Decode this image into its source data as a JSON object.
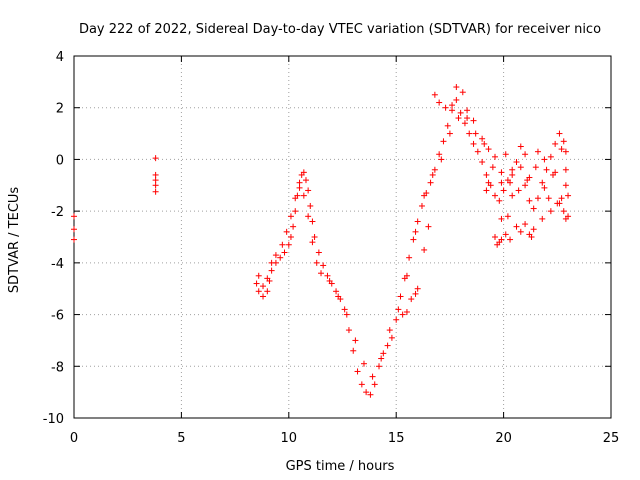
{
  "chart_data": {
    "type": "scatter",
    "title": "Day 222 of 2022, Sidereal Day-to-day VTEC variation (SDTVAR) for receiver nico",
    "xlabel": "GPS time / hours",
    "ylabel": "SDTVAR / TECUs",
    "xlim": [
      0,
      25
    ],
    "ylim": [
      -10,
      4
    ],
    "xticks": [
      0,
      5,
      10,
      15,
      20,
      25
    ],
    "yticks": [
      -10,
      -8,
      -6,
      -4,
      -2,
      0,
      2,
      4
    ],
    "grid": true,
    "marker": "+",
    "series": [
      {
        "name": "SDTVAR",
        "color": "#ff0000",
        "points": [
          [
            0.0,
            -2.2
          ],
          [
            0.0,
            -2.7
          ],
          [
            0.0,
            -3.1
          ],
          [
            3.8,
            0.05
          ],
          [
            3.8,
            -0.6
          ],
          [
            3.8,
            -0.8
          ],
          [
            3.8,
            -1.0
          ],
          [
            3.8,
            -1.25
          ],
          [
            8.5,
            -4.8
          ],
          [
            8.6,
            -5.1
          ],
          [
            8.8,
            -5.3
          ],
          [
            9.0,
            -5.1
          ],
          [
            9.1,
            -4.7
          ],
          [
            9.2,
            -4.3
          ],
          [
            9.4,
            -4.0
          ],
          [
            9.6,
            -3.8
          ],
          [
            9.8,
            -3.6
          ],
          [
            10.0,
            -3.3
          ],
          [
            10.1,
            -3.0
          ],
          [
            10.2,
            -2.6
          ],
          [
            10.3,
            -2.0
          ],
          [
            10.4,
            -1.4
          ],
          [
            10.5,
            -0.9
          ],
          [
            10.6,
            -0.6
          ],
          [
            10.7,
            -0.5
          ],
          [
            10.8,
            -0.8
          ],
          [
            10.9,
            -1.2
          ],
          [
            11.0,
            -1.8
          ],
          [
            11.1,
            -2.4
          ],
          [
            11.2,
            -3.0
          ],
          [
            11.4,
            -3.6
          ],
          [
            11.6,
            -4.1
          ],
          [
            11.8,
            -4.5
          ],
          [
            12.0,
            -4.8
          ],
          [
            12.2,
            -5.1
          ],
          [
            12.4,
            -5.4
          ],
          [
            12.6,
            -5.8
          ],
          [
            12.8,
            -6.6
          ],
          [
            13.0,
            -7.4
          ],
          [
            13.2,
            -8.2
          ],
          [
            13.4,
            -8.7
          ],
          [
            13.6,
            -9.0
          ],
          [
            13.8,
            -9.1
          ],
          [
            14.0,
            -8.7
          ],
          [
            14.2,
            -8.0
          ],
          [
            14.4,
            -7.5
          ],
          [
            14.6,
            -7.2
          ],
          [
            14.8,
            -6.9
          ],
          [
            15.0,
            -6.2
          ],
          [
            15.2,
            -5.3
          ],
          [
            15.4,
            -4.6
          ],
          [
            15.6,
            -3.8
          ],
          [
            15.8,
            -3.1
          ],
          [
            16.0,
            -2.4
          ],
          [
            16.2,
            -1.8
          ],
          [
            16.4,
            -1.3
          ],
          [
            16.6,
            -0.9
          ],
          [
            16.8,
            -0.4
          ],
          [
            17.0,
            0.2
          ],
          [
            17.2,
            0.7
          ],
          [
            17.4,
            1.3
          ],
          [
            17.6,
            2.1
          ],
          [
            17.8,
            2.8
          ],
          [
            18.0,
            1.8
          ],
          [
            18.2,
            1.4
          ],
          [
            18.4,
            1.0
          ],
          [
            18.6,
            0.6
          ],
          [
            18.8,
            0.3
          ],
          [
            19.0,
            -0.1
          ],
          [
            19.2,
            -0.6
          ],
          [
            19.4,
            -1.0
          ],
          [
            19.6,
            -1.4
          ],
          [
            19.8,
            -1.6
          ],
          [
            20.0,
            -1.2
          ],
          [
            20.2,
            -0.8
          ],
          [
            20.4,
            -0.4
          ],
          [
            20.6,
            -0.1
          ],
          [
            20.8,
            -0.3
          ],
          [
            21.0,
            -1.0
          ],
          [
            21.2,
            -1.6
          ],
          [
            21.4,
            -1.9
          ],
          [
            21.6,
            -1.5
          ],
          [
            21.8,
            -0.9
          ],
          [
            22.0,
            -0.4
          ],
          [
            22.2,
            0.1
          ],
          [
            22.4,
            0.6
          ],
          [
            22.6,
            1.0
          ],
          [
            22.8,
            0.7
          ],
          [
            22.9,
            0.3
          ],
          [
            22.9,
            -0.4
          ],
          [
            22.9,
            -1.0
          ],
          [
            23.0,
            -1.4
          ],
          [
            23.0,
            -2.2
          ],
          [
            8.6,
            -4.5
          ],
          [
            8.8,
            -4.9
          ],
          [
            9.0,
            -4.6
          ],
          [
            9.2,
            -4.0
          ],
          [
            9.4,
            -3.7
          ],
          [
            9.7,
            -3.3
          ],
          [
            9.9,
            -2.8
          ],
          [
            10.1,
            -2.2
          ],
          [
            10.3,
            -1.5
          ],
          [
            10.5,
            -1.1
          ],
          [
            10.7,
            -1.4
          ],
          [
            10.9,
            -2.2
          ],
          [
            11.1,
            -3.2
          ],
          [
            11.3,
            -4.0
          ],
          [
            11.5,
            -4.4
          ],
          [
            11.9,
            -4.7
          ],
          [
            12.3,
            -5.3
          ],
          [
            12.7,
            -6.0
          ],
          [
            13.1,
            -7.0
          ],
          [
            13.5,
            -7.9
          ],
          [
            13.9,
            -8.4
          ],
          [
            14.3,
            -7.7
          ],
          [
            14.7,
            -6.6
          ],
          [
            15.1,
            -5.8
          ],
          [
            15.5,
            -4.5
          ],
          [
            15.9,
            -2.8
          ],
          [
            16.3,
            -1.4
          ],
          [
            16.7,
            -0.6
          ],
          [
            17.1,
            0.0
          ],
          [
            17.5,
            1.0
          ],
          [
            17.9,
            1.6
          ],
          [
            18.3,
            1.6
          ],
          [
            18.7,
            1.0
          ],
          [
            19.1,
            0.6
          ],
          [
            19.5,
            -0.3
          ],
          [
            19.9,
            -0.9
          ],
          [
            20.3,
            -0.9
          ],
          [
            20.7,
            -1.2
          ],
          [
            21.1,
            -0.8
          ],
          [
            21.5,
            -0.3
          ],
          [
            21.9,
            -1.1
          ],
          [
            22.3,
            -0.6
          ],
          [
            22.7,
            0.4
          ],
          [
            15.3,
            -6.0
          ],
          [
            15.5,
            -5.9
          ],
          [
            15.7,
            -5.4
          ],
          [
            15.9,
            -5.2
          ],
          [
            16.0,
            -5.0
          ],
          [
            16.3,
            -3.5
          ],
          [
            16.5,
            -2.6
          ],
          [
            16.8,
            2.5
          ],
          [
            17.0,
            2.2
          ],
          [
            17.3,
            2.0
          ],
          [
            17.6,
            1.9
          ],
          [
            17.8,
            2.3
          ],
          [
            18.1,
            2.6
          ],
          [
            18.3,
            1.9
          ],
          [
            18.6,
            1.5
          ],
          [
            19.0,
            0.8
          ],
          [
            19.3,
            0.4
          ],
          [
            19.6,
            0.1
          ],
          [
            19.9,
            -0.5
          ],
          [
            20.1,
            0.2
          ],
          [
            20.4,
            -0.6
          ],
          [
            20.8,
            0.5
          ],
          [
            21.0,
            0.2
          ],
          [
            21.2,
            -0.7
          ],
          [
            21.6,
            0.3
          ],
          [
            21.9,
            0.0
          ],
          [
            22.1,
            -1.5
          ],
          [
            22.4,
            -0.5
          ],
          [
            22.6,
            -1.7
          ],
          [
            19.6,
            -3.0
          ],
          [
            19.7,
            -3.3
          ],
          [
            19.8,
            -3.2
          ],
          [
            19.9,
            -3.1
          ],
          [
            20.1,
            -2.9
          ],
          [
            19.9,
            -2.3
          ],
          [
            20.2,
            -2.2
          ],
          [
            20.4,
            -1.4
          ],
          [
            20.6,
            -2.6
          ],
          [
            20.8,
            -2.8
          ],
          [
            21.0,
            -2.5
          ],
          [
            21.2,
            -2.9
          ],
          [
            21.3,
            -3.0
          ],
          [
            21.4,
            -2.7
          ],
          [
            21.8,
            -2.3
          ],
          [
            22.2,
            -2.0
          ],
          [
            22.5,
            -1.7
          ],
          [
            22.7,
            -1.5
          ],
          [
            22.8,
            -2.0
          ],
          [
            22.9,
            -2.3
          ],
          [
            20.3,
            -3.1
          ],
          [
            19.3,
            -0.9
          ],
          [
            19.2,
            -1.2
          ]
        ]
      }
    ]
  }
}
